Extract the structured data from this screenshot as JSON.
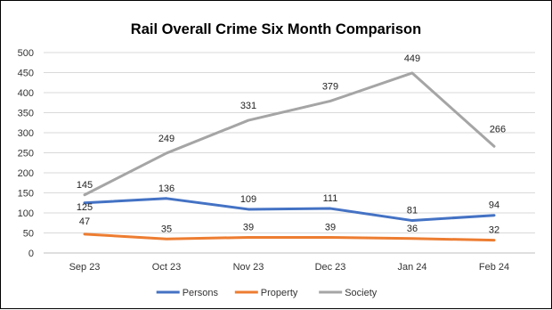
{
  "chart_data": {
    "type": "line",
    "title": "Rail Overall Crime Six Month Comparison",
    "xlabel": "",
    "ylabel": "",
    "categories": [
      "Sep 23",
      "Oct 23",
      "Nov 23",
      "Dec 23",
      "Jan 24",
      "Feb 24"
    ],
    "ylim": [
      0,
      500
    ],
    "yticks": [
      0,
      50,
      100,
      150,
      200,
      250,
      300,
      350,
      400,
      450,
      500
    ],
    "grid": true,
    "legend_position": "bottom",
    "series": [
      {
        "name": "Persons",
        "color": "#4472C4",
        "values": [
          125,
          136,
          109,
          111,
          81,
          94
        ]
      },
      {
        "name": "Property",
        "color": "#ED7D31",
        "values": [
          47,
          35,
          39,
          39,
          36,
          32
        ]
      },
      {
        "name": "Society",
        "color": "#A5A5A5",
        "values": [
          145,
          249,
          331,
          379,
          449,
          266
        ]
      }
    ]
  }
}
